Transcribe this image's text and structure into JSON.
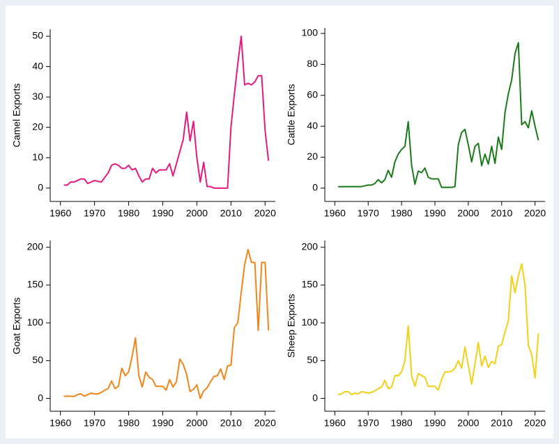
{
  "chart_data": [
    {
      "type": "line",
      "y_label": "Camel Exports",
      "color": "#e6197e",
      "x": [
        1961,
        1962,
        1963,
        1964,
        1965,
        1966,
        1967,
        1968,
        1969,
        1970,
        1971,
        1972,
        1973,
        1974,
        1975,
        1976,
        1977,
        1978,
        1979,
        1980,
        1981,
        1982,
        1983,
        1984,
        1985,
        1986,
        1987,
        1988,
        1989,
        1990,
        1991,
        1992,
        1993,
        1994,
        1995,
        1996,
        1997,
        1998,
        1999,
        2000,
        2001,
        2002,
        2003,
        2004,
        2005,
        2006,
        2007,
        2008,
        2009,
        2010,
        2011,
        2012,
        2013,
        2014,
        2015,
        2016,
        2017,
        2018,
        2019,
        2020,
        2021
      ],
      "values": [
        1,
        1,
        2,
        2,
        2.5,
        3,
        3,
        1.5,
        2,
        2.5,
        2.2,
        2,
        3.5,
        5,
        7.5,
        8,
        7.5,
        6.5,
        6.5,
        7.5,
        6,
        6.5,
        4,
        2,
        3,
        3,
        6.5,
        5,
        6,
        6,
        6,
        8,
        4,
        8,
        12,
        16,
        25,
        15.5,
        22,
        10,
        2,
        8.5,
        0.5,
        0.5,
        0,
        0,
        0,
        0,
        0,
        20,
        31,
        41,
        50,
        34,
        34.5,
        34,
        35,
        37,
        37,
        19,
        9
      ],
      "xlim": [
        1957,
        2023
      ],
      "xticks": [
        1960,
        1970,
        1980,
        1990,
        2000,
        2010,
        2020
      ],
      "ylim": [
        -4.4,
        52.3
      ],
      "yticks": [
        0,
        10,
        20,
        30,
        40,
        50
      ]
    },
    {
      "type": "line",
      "y_label": "Cattle Exports",
      "color": "#1a7a1a",
      "x": [
        1961,
        1962,
        1963,
        1964,
        1965,
        1966,
        1967,
        1968,
        1969,
        1970,
        1971,
        1972,
        1973,
        1974,
        1975,
        1976,
        1977,
        1978,
        1979,
        1980,
        1981,
        1982,
        1983,
        1984,
        1985,
        1986,
        1987,
        1988,
        1989,
        1990,
        1991,
        1992,
        1993,
        1994,
        1995,
        1996,
        1997,
        1998,
        1999,
        2000,
        2001,
        2002,
        2003,
        2004,
        2005,
        2006,
        2007,
        2008,
        2009,
        2010,
        2011,
        2012,
        2013,
        2014,
        2015,
        2016,
        2017,
        2018,
        2019,
        2020,
        2021
      ],
      "values": [
        1,
        1,
        1,
        1,
        1,
        1,
        1,
        1,
        1.5,
        2,
        2,
        3,
        5.5,
        3.5,
        5.5,
        11.5,
        7,
        17,
        22,
        25,
        27,
        43,
        15,
        2.5,
        11,
        10,
        13,
        7,
        6,
        6,
        6,
        0.5,
        0.5,
        0.5,
        0.5,
        1,
        28,
        36,
        38,
        28,
        17,
        27,
        29,
        14.5,
        22,
        15.5,
        27,
        16,
        33,
        25,
        49,
        61,
        70,
        87,
        94,
        41,
        43,
        39,
        50,
        40,
        31
      ],
      "xlim": [
        1957,
        2023
      ],
      "xticks": [
        1960,
        1970,
        1980,
        1990,
        2000,
        2010,
        2020
      ],
      "ylim": [
        -8.6,
        103.6
      ],
      "yticks": [
        0,
        20,
        40,
        60,
        80,
        100
      ]
    },
    {
      "type": "line",
      "y_label": "Goat Exports",
      "color": "#f28518",
      "x": [
        1961,
        1962,
        1963,
        1964,
        1965,
        1966,
        1967,
        1968,
        1969,
        1970,
        1971,
        1972,
        1973,
        1974,
        1975,
        1976,
        1977,
        1978,
        1979,
        1980,
        1981,
        1982,
        1983,
        1984,
        1985,
        1986,
        1987,
        1988,
        1989,
        1990,
        1991,
        1992,
        1993,
        1994,
        1995,
        1996,
        1997,
        1998,
        1999,
        2000,
        2001,
        2002,
        2003,
        2004,
        2005,
        2006,
        2007,
        2008,
        2009,
        2010,
        2011,
        2012,
        2013,
        2014,
        2015,
        2016,
        2017,
        2018,
        2019,
        2020,
        2021
      ],
      "values": [
        3,
        3,
        3,
        2.5,
        5,
        6,
        3,
        5,
        7,
        6,
        6,
        8,
        11,
        13,
        23,
        13,
        16,
        40,
        30,
        35,
        55,
        80,
        30,
        15,
        35,
        28,
        25,
        16,
        16,
        16,
        11,
        25,
        15,
        22,
        52,
        45,
        32,
        9,
        12,
        18,
        0,
        10,
        14,
        22,
        29,
        30,
        39,
        25,
        43,
        44,
        94,
        100,
        140,
        177,
        197,
        180,
        180,
        90,
        180,
        180,
        90
      ],
      "xlim": [
        1957,
        2023
      ],
      "xticks": [
        1960,
        1970,
        1980,
        1990,
        2000,
        2010,
        2020
      ],
      "ylim": [
        -17,
        209
      ],
      "yticks": [
        0,
        50,
        100,
        150,
        200
      ]
    },
    {
      "type": "line",
      "y_label": "Sheep Exports",
      "color": "#f2d016",
      "x": [
        1961,
        1962,
        1963,
        1964,
        1965,
        1966,
        1967,
        1968,
        1969,
        1970,
        1971,
        1972,
        1973,
        1974,
        1975,
        1976,
        1977,
        1978,
        1979,
        1980,
        1981,
        1982,
        1983,
        1984,
        1985,
        1986,
        1987,
        1988,
        1989,
        1990,
        1991,
        1992,
        1993,
        1994,
        1995,
        1996,
        1997,
        1998,
        1999,
        2000,
        2001,
        2002,
        2003,
        2004,
        2005,
        2006,
        2007,
        2008,
        2009,
        2010,
        2011,
        2012,
        2013,
        2014,
        2015,
        2016,
        2017,
        2018,
        2019,
        2020,
        2021
      ],
      "values": [
        5,
        6,
        9,
        9,
        5,
        7,
        6,
        9,
        8,
        7,
        8,
        10,
        13,
        15,
        24,
        13,
        15,
        30,
        30,
        35,
        50,
        96,
        30,
        16,
        33,
        30,
        28,
        16,
        16,
        16,
        11,
        25,
        35,
        35,
        36,
        40,
        50,
        40,
        68,
        44,
        19,
        46,
        74,
        43,
        56,
        41,
        49,
        46,
        69,
        71,
        88,
        103,
        162,
        140,
        162,
        178,
        150,
        70,
        58,
        27,
        86
      ],
      "xlim": [
        1957,
        2023
      ],
      "xticks": [
        1960,
        1970,
        1980,
        1990,
        2000,
        2010,
        2020
      ],
      "ylim": [
        -17,
        209
      ],
      "yticks": [
        0,
        50,
        100,
        150,
        200
      ]
    }
  ]
}
